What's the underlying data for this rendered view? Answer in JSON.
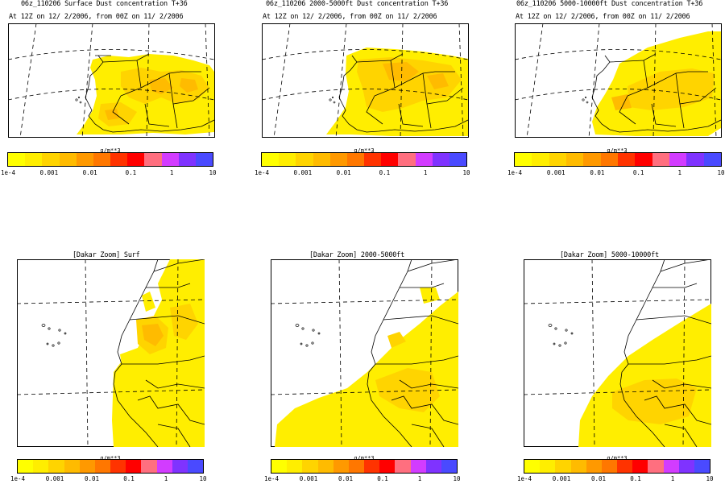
{
  "panels": [
    {
      "title": "06z_110206 Surface Dust concentration T+36",
      "subtitle": "At 12Z on 12/ 2/2006, from 00Z on 11/ 2/2006",
      "colorbar_unit": "g/m**3"
    },
    {
      "title": "06z_110206 2000-5000ft Dust concentration T+36",
      "subtitle": "At 12Z on 12/ 2/2006, from 00Z on 11/ 2/2006",
      "colorbar_unit": "g/m**3"
    },
    {
      "title": "06z_110206 5000-10000ft Dust concentration T+36",
      "subtitle": "At 12Z on 12/ 2/2006, from 00Z on 11/ 2/2006",
      "colorbar_unit": "g/m**3"
    },
    {
      "title": "[Dakar Zoom] Surf",
      "colorbar_unit": "g/m**3"
    },
    {
      "title": "[Dakar Zoom] 2000-5000ft",
      "colorbar_unit": "g/m**3"
    },
    {
      "title": "[Dakar Zoom] 5000-10000ft",
      "colorbar_unit": "g/m**3"
    }
  ],
  "colorbar": {
    "tick_labels": [
      "1e-4",
      "0.001",
      "0.01",
      "0.1",
      "1",
      "10"
    ],
    "colors": [
      "#ffff00",
      "#ffee00",
      "#ffd400",
      "#ffbb00",
      "#ff9900",
      "#ff7700",
      "#ff3300",
      "#ff0000",
      "#ff6f7f",
      "#d23cff",
      "#7f33ff",
      "#4a4aff"
    ]
  },
  "palette": {
    "dust_light": "#ffee00",
    "dust_mid": "#ffd400",
    "dust_dark": "#ffbb00",
    "dust_max": "#f7a300"
  }
}
